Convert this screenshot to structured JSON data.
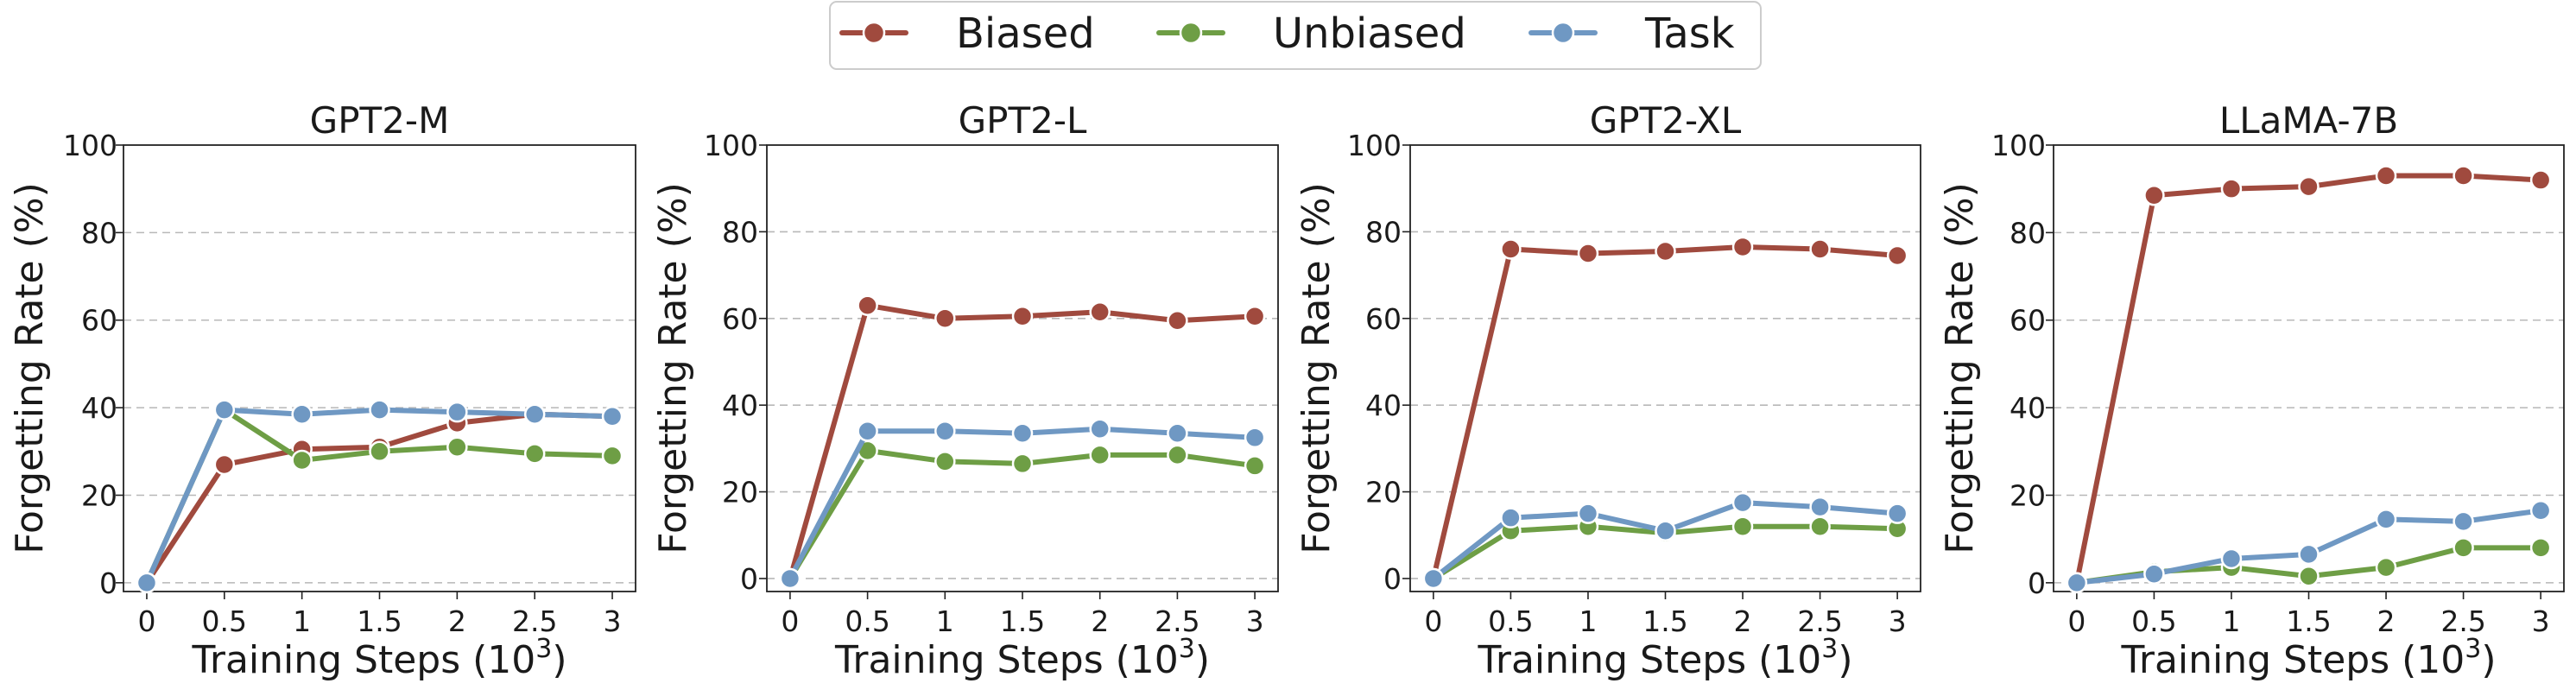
{
  "legend": {
    "placement": "top-center",
    "entries": [
      {
        "name": "Biased",
        "color": "#A04A3E"
      },
      {
        "name": "Unbiased",
        "color": "#6E9E45"
      },
      {
        "name": "Task",
        "color": "#6F98C3"
      }
    ]
  },
  "chart_data": [
    {
      "type": "line",
      "title": "GPT2-M",
      "xlabel": "Training Steps (10",
      "xlabel_sup": "3",
      "xlabel_close": ")",
      "ylabel": "Forgetting Rate (%)",
      "x": [
        0,
        0.5,
        1,
        1.5,
        2,
        2.5,
        3
      ],
      "xtick_labels": [
        "0",
        "0.5",
        "1",
        "1.5",
        "2",
        "2.5",
        "3"
      ],
      "yticks": [
        0,
        20,
        40,
        60,
        80,
        100
      ],
      "xlim": [
        -0.15,
        3.15
      ],
      "ylim": [
        -2,
        100
      ],
      "grid": "horizontal-dashed",
      "series": [
        {
          "name": "Biased",
          "values": [
            0,
            27,
            30.5,
            31,
            36.5,
            38.5,
            38
          ]
        },
        {
          "name": "Unbiased",
          "values": [
            0,
            39.5,
            28,
            30,
            31,
            29.5,
            29
          ]
        },
        {
          "name": "Task",
          "values": [
            0,
            39.5,
            38.5,
            39.5,
            39,
            38.5,
            38
          ]
        }
      ]
    },
    {
      "type": "line",
      "title": "GPT2-L",
      "xlabel": "Training Steps (10",
      "xlabel_sup": "3",
      "xlabel_close": ")",
      "ylabel": "Forgetting Rate (%)",
      "x": [
        0,
        0.5,
        1,
        1.5,
        2,
        2.5,
        3
      ],
      "xtick_labels": [
        "0",
        "0.5",
        "1",
        "1.5",
        "2",
        "2.5",
        "3"
      ],
      "yticks": [
        0,
        20,
        40,
        60,
        80,
        100
      ],
      "xlim": [
        -0.15,
        3.15
      ],
      "ylim": [
        -3,
        100
      ],
      "grid": "horizontal-dashed",
      "series": [
        {
          "name": "Biased",
          "values": [
            0,
            63,
            60,
            60.5,
            61.5,
            59.5,
            60.5
          ]
        },
        {
          "name": "Unbiased",
          "values": [
            0,
            29.5,
            27,
            26.5,
            28.5,
            28.5,
            26
          ]
        },
        {
          "name": "Task",
          "values": [
            0,
            34,
            34,
            33.5,
            34.5,
            33.5,
            32.5
          ]
        }
      ]
    },
    {
      "type": "line",
      "title": "GPT2-XL",
      "xlabel": "Training Steps (10",
      "xlabel_sup": "3",
      "xlabel_close": ")",
      "ylabel": "Forgetting Rate (%)",
      "x": [
        0,
        0.5,
        1,
        1.5,
        2,
        2.5,
        3
      ],
      "xtick_labels": [
        "0",
        "0.5",
        "1",
        "1.5",
        "2",
        "2.5",
        "3"
      ],
      "yticks": [
        0,
        20,
        40,
        60,
        80,
        100
      ],
      "xlim": [
        -0.15,
        3.15
      ],
      "ylim": [
        -3,
        100
      ],
      "grid": "horizontal-dashed",
      "series": [
        {
          "name": "Biased",
          "values": [
            0,
            76,
            75,
            75.5,
            76.5,
            76,
            74.5
          ]
        },
        {
          "name": "Unbiased",
          "values": [
            0,
            11,
            12,
            10.5,
            12,
            12,
            11.5
          ]
        },
        {
          "name": "Task",
          "values": [
            0,
            14,
            15,
            11,
            17.5,
            16.5,
            15
          ]
        }
      ]
    },
    {
      "type": "line",
      "title": "LLaMA-7B",
      "xlabel": "Training Steps (10",
      "xlabel_sup": "3",
      "xlabel_close": ")",
      "ylabel": "Forgetting Rate (%)",
      "x": [
        0,
        0.5,
        1,
        1.5,
        2,
        2.5,
        3
      ],
      "xtick_labels": [
        "0",
        "0.5",
        "1",
        "1.5",
        "2",
        "2.5",
        "3"
      ],
      "yticks": [
        0,
        20,
        40,
        60,
        80,
        100
      ],
      "xlim": [
        -0.15,
        3.15
      ],
      "ylim": [
        -2,
        100
      ],
      "grid": "horizontal-dashed",
      "series": [
        {
          "name": "Biased",
          "values": [
            0,
            88.5,
            90,
            90.5,
            93,
            93,
            92
          ]
        },
        {
          "name": "Unbiased",
          "values": [
            0,
            2.5,
            3.5,
            1.5,
            3.5,
            8,
            8
          ]
        },
        {
          "name": "Task",
          "values": [
            0,
            2,
            5.5,
            6.5,
            14.5,
            14,
            16.5
          ]
        }
      ]
    }
  ]
}
